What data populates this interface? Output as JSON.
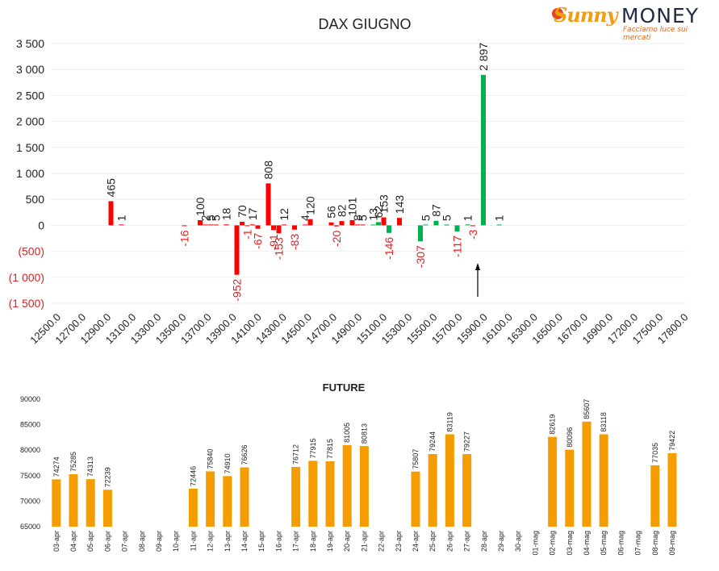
{
  "logo": {
    "brand_a": "Sunny",
    "brand_b": "MONEY",
    "tagline": "Facciamo luce sui mercati"
  },
  "colors": {
    "red": "#ff0000",
    "green": "#00b050",
    "orange": "#f59c00",
    "pos_label": "#222222",
    "neg_label": "#e02020"
  },
  "chart_data": [
    {
      "type": "bar",
      "title": "DAX GIUGNO",
      "xlabel": "",
      "ylabel": "",
      "ylim": [
        -1500,
        3500
      ],
      "ytick_labels": [
        "3 500",
        "3 000",
        "2 500",
        "2 000",
        "1 500",
        "1 000",
        "500",
        "0",
        "(500)",
        "(1 000)",
        "(1 500)"
      ],
      "xtick_labels": [
        "12500.0",
        "12700.0",
        "12900.0",
        "13100.0",
        "13300.0",
        "13500.0",
        "13700.0",
        "13900.0",
        "14100.0",
        "14300.0",
        "14500.0",
        "14700.0",
        "14900.0",
        "15100.0",
        "15300.0",
        "15500.0",
        "15700.0",
        "15900.0",
        "16100.0",
        "16300.0",
        "16500.0",
        "16700.0",
        "16900.0",
        "17200.0",
        "17500.0",
        "17800.0"
      ],
      "bars": [
        {
          "strike": 13050,
          "value": 465,
          "color": "red",
          "label": "465"
        },
        {
          "strike": 13150,
          "value": 1,
          "color": "red",
          "label": "1"
        },
        {
          "strike": 13750,
          "value": -16,
          "color": "red",
          "label": "-16"
        },
        {
          "strike": 13900,
          "value": 100,
          "color": "red",
          "label": "100"
        },
        {
          "strike": 13950,
          "value": 2,
          "color": "red",
          "label": "2"
        },
        {
          "strike": 14000,
          "value": 5,
          "color": "red",
          "label": "5"
        },
        {
          "strike": 14050,
          "value": 5,
          "color": "red",
          "label": "5"
        },
        {
          "strike": 14150,
          "value": 18,
          "color": "red",
          "label": "18"
        },
        {
          "strike": 14250,
          "value": -952,
          "color": "red",
          "label": "-952"
        },
        {
          "strike": 14300,
          "value": 70,
          "color": "red",
          "label": "70"
        },
        {
          "strike": 14350,
          "value": -1,
          "color": "red",
          "label": "-1"
        },
        {
          "strike": 14400,
          "value": 17,
          "color": "red",
          "label": "17"
        },
        {
          "strike": 14450,
          "value": -67,
          "color": "red",
          "label": "-67"
        },
        {
          "strike": 14550,
          "value": 808,
          "color": "red",
          "label": "808"
        },
        {
          "strike": 14600,
          "value": -91,
          "color": "red",
          "label": "-91"
        },
        {
          "strike": 14650,
          "value": -153,
          "color": "red",
          "label": "-153"
        },
        {
          "strike": 14700,
          "value": 12,
          "color": "red",
          "label": "12"
        },
        {
          "strike": 14800,
          "value": -83,
          "color": "red",
          "label": "-83"
        },
        {
          "strike": 14900,
          "value": 4,
          "color": "red",
          "label": "4"
        },
        {
          "strike": 14950,
          "value": 120,
          "color": "red",
          "label": "120"
        },
        {
          "strike": 15150,
          "value": 56,
          "color": "red",
          "label": "56"
        },
        {
          "strike": 15200,
          "value": -20,
          "color": "red",
          "label": "-20"
        },
        {
          "strike": 15250,
          "value": 82,
          "color": "red",
          "label": "82"
        },
        {
          "strike": 15350,
          "value": 101,
          "color": "red",
          "label": "101"
        },
        {
          "strike": 15400,
          "value": 8,
          "color": "red",
          "label": "8"
        },
        {
          "strike": 15450,
          "value": 5,
          "color": "red",
          "label": "5"
        },
        {
          "strike": 15550,
          "value": 13,
          "color": "green",
          "label": "13"
        },
        {
          "strike": 15600,
          "value": 62,
          "color": "green",
          "label": "62"
        },
        {
          "strike": 15650,
          "value": 153,
          "color": "red",
          "label": "153"
        },
        {
          "strike": 15700,
          "value": -146,
          "color": "green",
          "label": "-146"
        },
        {
          "strike": 15800,
          "value": 143,
          "color": "red",
          "label": "143"
        },
        {
          "strike": 16000,
          "value": -307,
          "color": "green",
          "label": "-307"
        },
        {
          "strike": 16050,
          "value": 5,
          "color": "green",
          "label": "5"
        },
        {
          "strike": 16150,
          "value": 87,
          "color": "green",
          "label": "87"
        },
        {
          "strike": 16250,
          "value": 5,
          "color": "green",
          "label": "5"
        },
        {
          "strike": 16350,
          "value": -117,
          "color": "green",
          "label": "-117"
        },
        {
          "strike": 16450,
          "value": 1,
          "color": "green",
          "label": "1"
        },
        {
          "strike": 16500,
          "value": -3,
          "color": "red",
          "label": "-3"
        },
        {
          "strike": 16600,
          "value": 2897,
          "color": "green",
          "label": "2 897"
        },
        {
          "strike": 16750,
          "value": 1,
          "color": "green",
          "label": "1"
        }
      ],
      "annotation": "arrow at 15900"
    },
    {
      "type": "bar",
      "title": "FUTURE",
      "ylim": [
        65000,
        90000
      ],
      "ytick_labels": [
        "90000",
        "85000",
        "80000",
        "75000",
        "70000",
        "65000"
      ],
      "categories": [
        "03-apr",
        "04-apr",
        "05-apr",
        "06-apr",
        "07-apr",
        "08-apr",
        "09-apr",
        "10-apr",
        "11-apr",
        "12-apr",
        "13-apr",
        "14-apr",
        "15-apr",
        "16-apr",
        "17-apr",
        "18-apr",
        "19-apr",
        "20-apr",
        "21-apr",
        "22-apr",
        "23-apr",
        "24-apr",
        "25-apr",
        "26-apr",
        "27-apr",
        "28-apr",
        "29-apr",
        "30-apr",
        "01-mag",
        "02-mag",
        "03-mag",
        "04-mag",
        "05-mag",
        "06-mag",
        "07-mag",
        "08-mag",
        "09-mag"
      ],
      "values": [
        74274,
        75285,
        74313,
        72239,
        null,
        null,
        null,
        null,
        72446,
        75840,
        74910,
        76626,
        null,
        null,
        76712,
        77915,
        77815,
        81005,
        80813,
        null,
        null,
        75807,
        79244,
        83119,
        79227,
        null,
        null,
        null,
        null,
        82619,
        80096,
        85607,
        83118,
        null,
        null,
        77035,
        79422
      ]
    }
  ]
}
